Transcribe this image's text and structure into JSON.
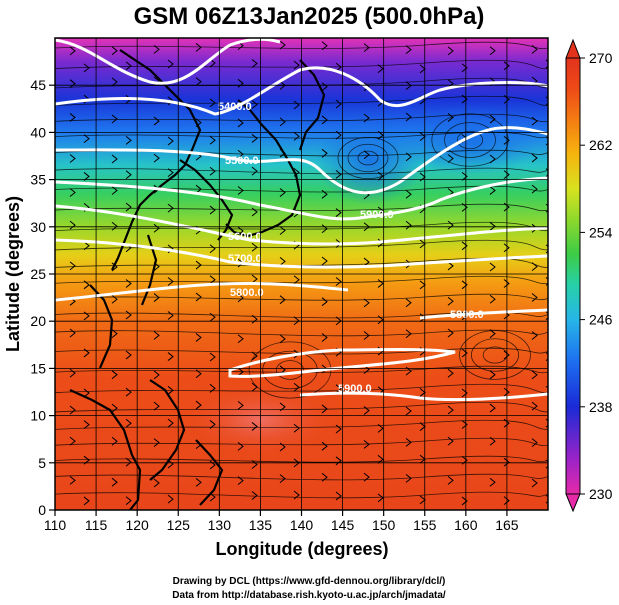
{
  "title": "GSM 06Z13Jan2025 (500.0hPa)",
  "x_axis_title": "Longitude (degrees)",
  "y_axis_title": "Latitude  (degrees)",
  "x_ticks": [
    "110",
    "115",
    "120",
    "125",
    "130",
    "135",
    "140",
    "145",
    "150",
    "155",
    "160",
    "165"
  ],
  "y_ticks": [
    "0",
    "5",
    "10",
    "15",
    "20",
    "25",
    "30",
    "35",
    "40",
    "45"
  ],
  "colorbar": {
    "labels": [
      "230",
      "238",
      "246",
      "254",
      "262",
      "270"
    ],
    "min": 230,
    "max": 270,
    "colors": [
      "#e62aa8",
      "#9b23c8",
      "#1a2bd6",
      "#1d6cf0",
      "#27b6e8",
      "#27d0a8",
      "#3ccc45",
      "#8fd82c",
      "#d8e21f",
      "#f6b40f",
      "#f47b12",
      "#ee4a17",
      "#e3331d"
    ]
  },
  "contour_labels": [
    "5400.0",
    "5500.0",
    "5600.0",
    "5700.0",
    "5800.0",
    "5800.0",
    "5900.0",
    "5900.0"
  ],
  "credits": [
    "Drawing by DCL (https://www.gfd-dennou.org/library/dcl/)",
    "Data from http://database.rish.kyoto-u.ac.jp/arch/jmadata/"
  ]
}
